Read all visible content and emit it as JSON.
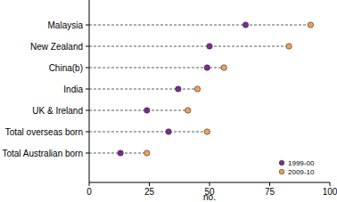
{
  "chart_data": {
    "type": "dot",
    "orientation": "horizontal",
    "x_label": "no.",
    "categories": [
      "Malaysia",
      "New Zealand",
      "China(b)",
      "India",
      "UK & Ireland",
      "Total overseas born",
      "Total Australian born"
    ],
    "series": [
      {
        "name": "1999-00",
        "color": "#7b2d8e",
        "marker": "circle",
        "values": [
          65,
          50,
          49,
          37,
          24,
          33,
          13
        ]
      },
      {
        "name": "2009-10",
        "color": "#f0a05a",
        "marker": "circle",
        "values": [
          92,
          83,
          56,
          45,
          41,
          49,
          24
        ]
      }
    ],
    "xlim": [
      0,
      100
    ],
    "xticks": [
      0,
      25,
      50,
      75,
      100
    ],
    "legend": "lower right",
    "line_style": "dashed",
    "grid": false
  }
}
